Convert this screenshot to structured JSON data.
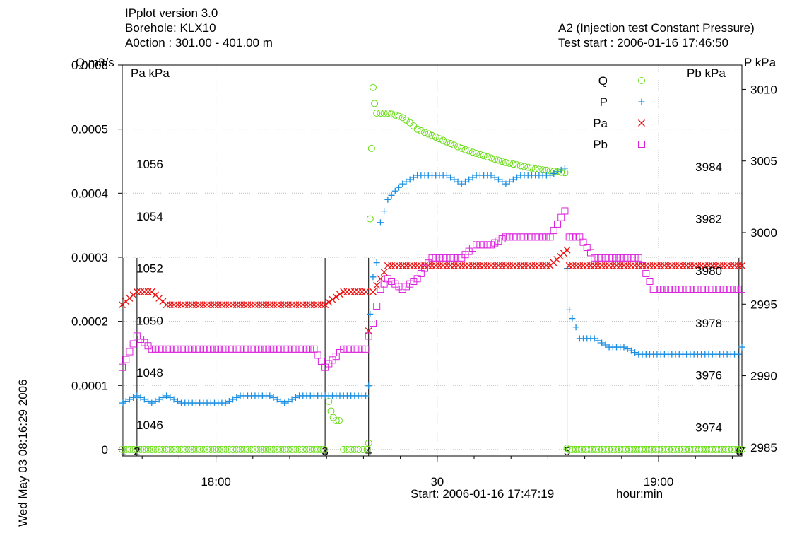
{
  "header": {
    "left_line1": "IPplot version 3.0",
    "left_line2": "Borehole: KLX10",
    "left_line3": "A0ction : 301.00   - 401.00  m",
    "right_line1": "A2 (Injection test Constant Pressure)",
    "right_line2": "Test start : 2006-01-16 17:46:50"
  },
  "side_stamp": "Wed May 03 08:16:29 2006",
  "footer": {
    "start": "Start: 2006-01-16 17:47:19",
    "unit": "hour:min"
  },
  "colors": {
    "Q": "#66dd11",
    "P": "#1a8fe3",
    "Pa": "#ee1111",
    "Pb": "#dd22dd",
    "grid": "#bbbbbb",
    "event_line": "#000000"
  },
  "chart_data": {
    "type": "scatter",
    "x_unit": "minutes after 17:47:19",
    "xlim": [
      0,
      84
    ],
    "grid": true,
    "legend_position": "top-right",
    "axes": {
      "left_q": {
        "label": "Q  m3/s",
        "lim": [
          -1e-05,
          0.0006
        ],
        "ticks": [
          "0",
          "0.0001",
          "0.0002",
          "0.0003",
          "0.0004",
          "0.0005",
          "0.0006"
        ],
        "tick_values": [
          0,
          0.0001,
          0.0002,
          0.0003,
          0.0004,
          0.0005,
          0.0006
        ]
      },
      "left_pa": {
        "label": "Pa  kPa",
        "lim": [
          1044.8,
          1059.8
        ],
        "ticks": [
          "1046",
          "1048",
          "1050",
          "1052",
          "1054",
          "1056"
        ],
        "tick_values": [
          1046,
          1048,
          1050,
          1052,
          1054,
          1056
        ]
      },
      "right_pb": {
        "label": "Pb  kPa",
        "lim": [
          3972.9,
          3987.9
        ],
        "ticks": [
          "3974",
          "3976",
          "3978",
          "3980",
          "3982",
          "3984"
        ],
        "tick_values": [
          3974,
          3976,
          3978,
          3980,
          3982,
          3984
        ]
      },
      "right_p": {
        "label": "P  kPa",
        "lim": [
          2984.4,
          3011.7
        ],
        "ticks": [
          "2985",
          "2990",
          "2995",
          "3000",
          "3005",
          "3010"
        ],
        "tick_values": [
          2985,
          2990,
          2995,
          3000,
          3005,
          3010
        ]
      }
    },
    "x_ticks": [
      {
        "label": "18:00",
        "x": 12.7
      },
      {
        "label": "30",
        "x": 42.7
      },
      {
        "label": "19:00",
        "x": 72.7
      }
    ],
    "events": [
      {
        "label": "1",
        "x": 0.2
      },
      {
        "label": "2",
        "x": 2.0
      },
      {
        "label": "3",
        "x": 27.5
      },
      {
        "label": "4",
        "x": 33.4
      },
      {
        "label": "5",
        "x": 60.3
      },
      {
        "label": "6",
        "x": 83.6
      },
      {
        "label": "7",
        "x": 84.0
      }
    ],
    "series": [
      {
        "name": "Q",
        "axis": "left_q",
        "marker": "circle",
        "points": [
          [
            0,
            0
          ],
          [
            1,
            0
          ],
          [
            2,
            0
          ],
          [
            4,
            0
          ],
          [
            6,
            0
          ],
          [
            8,
            0
          ],
          [
            10,
            0
          ],
          [
            12,
            0
          ],
          [
            14,
            0
          ],
          [
            16,
            0
          ],
          [
            18,
            0
          ],
          [
            20,
            0
          ],
          [
            22,
            0
          ],
          [
            24,
            0
          ],
          [
            26,
            0
          ],
          [
            27.4,
            0
          ],
          [
            28,
            7.5e-05
          ],
          [
            28.3,
            6e-05
          ],
          [
            28.6,
            5e-05
          ],
          [
            29,
            4.5e-05
          ],
          [
            29.4,
            4.5e-05
          ],
          [
            30,
            0
          ],
          [
            31,
            0
          ],
          [
            32,
            0
          ],
          [
            33.2,
            0
          ],
          [
            33.4,
            1e-05
          ],
          [
            33.6,
            0.00036
          ],
          [
            33.8,
            0.00047
          ],
          [
            34,
            0.000565
          ],
          [
            34.2,
            0.00054
          ],
          [
            34.5,
            0.000525
          ],
          [
            35,
            0.000525
          ],
          [
            36,
            0.000525
          ],
          [
            37,
            0.000522
          ],
          [
            38,
            0.000518
          ],
          [
            39,
            0.00051
          ],
          [
            40,
            0.0005
          ],
          [
            42,
            0.00049
          ],
          [
            44,
            0.00048
          ],
          [
            46,
            0.00047
          ],
          [
            48,
            0.000462
          ],
          [
            50,
            0.000455
          ],
          [
            52,
            0.000448
          ],
          [
            54,
            0.000443
          ],
          [
            56,
            0.000438
          ],
          [
            58,
            0.000435
          ],
          [
            60,
            0.000432
          ],
          [
            60.3,
            2e-06
          ],
          [
            60.6,
            0
          ],
          [
            61,
            0
          ],
          [
            83.6,
            0
          ],
          [
            84,
            0
          ]
        ]
      },
      {
        "name": "P",
        "axis": "right_p",
        "marker": "plus",
        "points": [
          [
            0,
            2988.1
          ],
          [
            2,
            2988.6
          ],
          [
            4,
            2988.1
          ],
          [
            6,
            2988.6
          ],
          [
            8,
            2988.1
          ],
          [
            10,
            2988.1
          ],
          [
            12,
            2988.1
          ],
          [
            14,
            2988.1
          ],
          [
            16,
            2988.6
          ],
          [
            18,
            2988.6
          ],
          [
            20,
            2988.6
          ],
          [
            22,
            2988.1
          ],
          [
            24,
            2988.6
          ],
          [
            26,
            2988.6
          ],
          [
            27.5,
            2988.6
          ],
          [
            30,
            2988.6
          ],
          [
            33,
            2988.6
          ],
          [
            33.4,
            2989.3
          ],
          [
            33.6,
            2994.3
          ],
          [
            34,
            2996.9
          ],
          [
            34.5,
            2997.9
          ],
          [
            35,
            3000.7
          ],
          [
            35.5,
            3001.5
          ],
          [
            36,
            3002.3
          ],
          [
            37,
            3002.9
          ],
          [
            38,
            3003.4
          ],
          [
            40,
            3004.0
          ],
          [
            42,
            3004.0
          ],
          [
            44,
            3004.0
          ],
          [
            46,
            3003.4
          ],
          [
            48,
            3004.0
          ],
          [
            50,
            3004.0
          ],
          [
            52,
            3003.4
          ],
          [
            54,
            3004.0
          ],
          [
            56,
            3004.0
          ],
          [
            58,
            3004.0
          ],
          [
            60,
            3004.5
          ],
          [
            60.3,
            2997.5
          ],
          [
            60.6,
            2994.6
          ],
          [
            61,
            2994.0
          ],
          [
            61.5,
            2993.4
          ],
          [
            62,
            2992.6
          ],
          [
            64,
            2992.6
          ],
          [
            66,
            2992.0
          ],
          [
            68,
            2992.0
          ],
          [
            70,
            2991.5
          ],
          [
            72,
            2991.5
          ],
          [
            74,
            2991.5
          ],
          [
            76,
            2991.5
          ],
          [
            78,
            2991.5
          ],
          [
            80,
            2991.5
          ],
          [
            82,
            2991.5
          ],
          [
            83.5,
            2991.5
          ],
          [
            84,
            2992.0
          ]
        ]
      },
      {
        "name": "Pa",
        "axis": "left_pa",
        "marker": "cross",
        "points": [
          [
            0,
            1050.6
          ],
          [
            2,
            1051.1
          ],
          [
            4,
            1051.1
          ],
          [
            6,
            1050.6
          ],
          [
            8,
            1050.6
          ],
          [
            10,
            1050.6
          ],
          [
            12,
            1050.6
          ],
          [
            14,
            1050.6
          ],
          [
            16,
            1050.6
          ],
          [
            18,
            1050.6
          ],
          [
            20,
            1050.6
          ],
          [
            22,
            1050.6
          ],
          [
            24,
            1050.6
          ],
          [
            26,
            1050.6
          ],
          [
            27.5,
            1050.6
          ],
          [
            30,
            1051.1
          ],
          [
            33,
            1051.1
          ],
          [
            33.4,
            1049.6
          ],
          [
            34,
            1051.1
          ],
          [
            35,
            1051.6
          ],
          [
            36,
            1052.1
          ],
          [
            38,
            1052.1
          ],
          [
            40,
            1052.1
          ],
          [
            42,
            1052.1
          ],
          [
            44,
            1052.1
          ],
          [
            46,
            1052.1
          ],
          [
            48,
            1052.1
          ],
          [
            50,
            1052.1
          ],
          [
            52,
            1052.1
          ],
          [
            54,
            1052.1
          ],
          [
            56,
            1052.1
          ],
          [
            58,
            1052.1
          ],
          [
            60.3,
            1052.7
          ],
          [
            60.6,
            1052.1
          ],
          [
            62,
            1052.1
          ],
          [
            64,
            1052.1
          ],
          [
            66,
            1052.1
          ],
          [
            68,
            1052.1
          ],
          [
            70,
            1052.1
          ],
          [
            72,
            1052.1
          ],
          [
            74,
            1052.1
          ],
          [
            76,
            1052.1
          ],
          [
            78,
            1052.1
          ],
          [
            80,
            1052.1
          ],
          [
            82,
            1052.1
          ],
          [
            84,
            1052.1
          ]
        ]
      },
      {
        "name": "Pb",
        "axis": "right_pb",
        "marker": "square",
        "points": [
          [
            0,
            3976.3
          ],
          [
            1,
            3976.9
          ],
          [
            2,
            3977.5
          ],
          [
            4,
            3977.0
          ],
          [
            6,
            3977.0
          ],
          [
            8,
            3977.0
          ],
          [
            10,
            3977.0
          ],
          [
            12,
            3977.0
          ],
          [
            14,
            3977.0
          ],
          [
            16,
            3977.0
          ],
          [
            18,
            3977.0
          ],
          [
            20,
            3977.0
          ],
          [
            22,
            3977.0
          ],
          [
            24,
            3977.0
          ],
          [
            26,
            3977.0
          ],
          [
            27.5,
            3976.3
          ],
          [
            30,
            3977.0
          ],
          [
            33,
            3977.0
          ],
          [
            33.4,
            3977.5
          ],
          [
            34,
            3978.0
          ],
          [
            35,
            3979.3
          ],
          [
            36,
            3979.7
          ],
          [
            38,
            3979.3
          ],
          [
            40,
            3979.7
          ],
          [
            42,
            3980.5
          ],
          [
            44,
            3980.5
          ],
          [
            46,
            3980.5
          ],
          [
            48,
            3981.0
          ],
          [
            50,
            3981.0
          ],
          [
            52,
            3981.3
          ],
          [
            54,
            3981.3
          ],
          [
            56,
            3981.3
          ],
          [
            58,
            3981.3
          ],
          [
            60,
            3982.3
          ],
          [
            60.6,
            3981.3
          ],
          [
            62,
            3981.3
          ],
          [
            64,
            3980.5
          ],
          [
            66,
            3980.5
          ],
          [
            68,
            3980.5
          ],
          [
            70,
            3980.5
          ],
          [
            72,
            3979.3
          ],
          [
            74,
            3979.3
          ],
          [
            76,
            3979.3
          ],
          [
            78,
            3979.3
          ],
          [
            80,
            3979.3
          ],
          [
            82,
            3979.3
          ],
          [
            84,
            3979.3
          ]
        ]
      }
    ],
    "legend": [
      {
        "name": "Q",
        "marker": "circle"
      },
      {
        "name": "P",
        "marker": "plus"
      },
      {
        "name": "Pa",
        "marker": "cross"
      },
      {
        "name": "Pb",
        "marker": "square"
      }
    ]
  }
}
